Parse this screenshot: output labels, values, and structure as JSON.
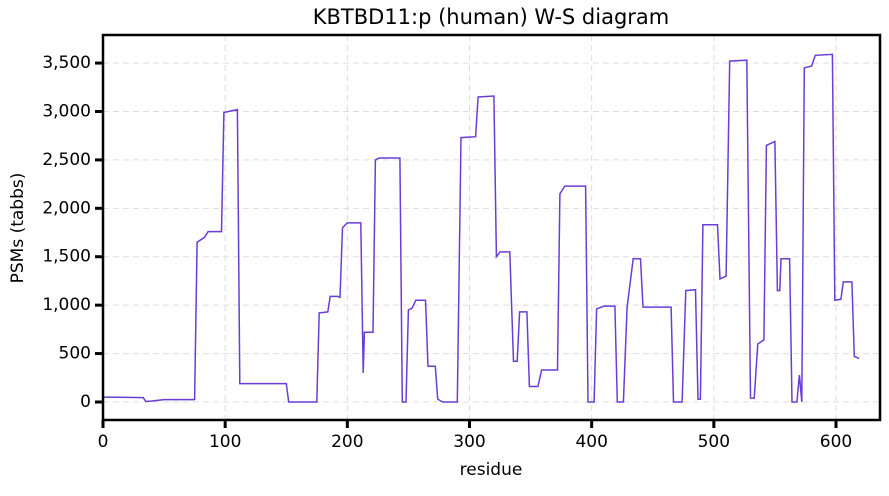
{
  "chart_data": {
    "type": "line",
    "title": "KBTBD11:p (human) W-S diagram",
    "x_label": "residue",
    "y_label": "PSMs (tabbs)",
    "xlim": [
      0,
      636
    ],
    "ylim": [
      -186,
      3790
    ],
    "xticks": [
      0,
      100,
      200,
      300,
      400,
      500,
      600
    ],
    "yticks": [
      0,
      500,
      {
        "value": 1000,
        "label": "1,000"
      },
      {
        "value": 1500,
        "label": "1,500"
      },
      {
        "value": 2000,
        "label": "2,000"
      },
      {
        "value": 2500,
        "label": "2,500"
      },
      {
        "value": 3000,
        "label": "3,000"
      },
      {
        "value": 3500,
        "label": "3,500"
      }
    ],
    "grid": true,
    "series": [
      {
        "color": "#6a3dd6",
        "x": [
          0,
          33,
          35,
          40,
          50,
          75,
          77,
          83,
          86,
          97,
          99,
          110,
          112,
          150,
          152,
          175,
          177,
          184,
          186,
          192,
          194,
          196,
          200,
          211,
          213,
          214,
          221,
          223,
          226,
          243,
          245,
          248,
          250,
          253,
          256,
          264,
          266,
          272,
          274,
          278,
          290,
          293,
          305,
          307,
          320,
          322,
          325,
          333,
          336,
          339,
          341,
          347,
          349,
          356,
          359,
          372,
          374,
          378,
          395,
          397,
          402,
          404,
          410,
          419,
          421,
          426,
          429,
          434,
          440,
          442,
          465,
          467,
          474,
          477,
          485,
          487,
          489,
          491,
          503,
          505,
          510,
          513,
          527,
          530,
          533,
          536,
          541,
          543,
          550,
          552,
          554,
          555,
          562,
          564,
          568,
          570,
          572,
          574,
          580,
          583,
          597,
          599,
          604,
          606,
          613,
          615,
          619
        ],
        "values": [
          50,
          45,
          5,
          10,
          25,
          25,
          1650,
          1700,
          1760,
          1760,
          2990,
          3020,
          190,
          190,
          0,
          0,
          920,
          930,
          1090,
          1090,
          1080,
          1800,
          1850,
          1850,
          300,
          720,
          720,
          2500,
          2520,
          2520,
          0,
          0,
          950,
          970,
          1050,
          1050,
          370,
          370,
          30,
          0,
          0,
          2730,
          2740,
          3150,
          3160,
          1500,
          1550,
          1550,
          420,
          420,
          930,
          930,
          160,
          160,
          330,
          330,
          2150,
          2230,
          2230,
          0,
          0,
          960,
          990,
          990,
          0,
          0,
          980,
          1480,
          1480,
          980,
          980,
          0,
          0,
          1150,
          1160,
          30,
          30,
          1830,
          1830,
          1270,
          1300,
          3520,
          3530,
          40,
          40,
          600,
          640,
          2650,
          2690,
          1150,
          1150,
          1480,
          1480,
          0,
          0,
          280,
          0,
          3450,
          3470,
          3580,
          3590,
          1050,
          1060,
          1240,
          1240,
          470,
          450
        ]
      }
    ]
  }
}
